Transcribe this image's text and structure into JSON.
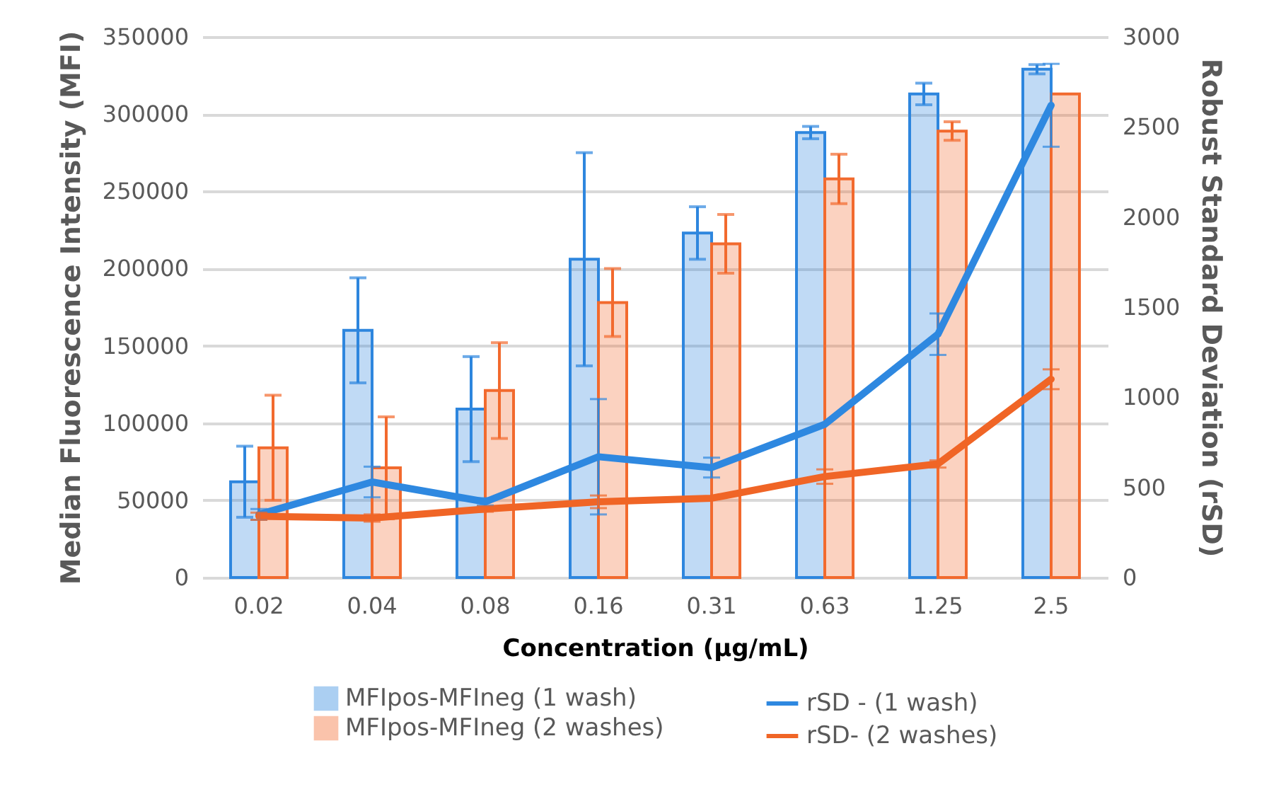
{
  "chart_data": {
    "type": "bar",
    "xlabel": "Concentration (µg/mL)",
    "ylabel": "Median Fluorescence Intensity (MFI)",
    "y2label": "Robust Standard Deviation (rSD)",
    "categories": [
      "0.02",
      "0.04",
      "0.08",
      "0.16",
      "0.31",
      "0.63",
      "1.25",
      "2.5"
    ],
    "series": [
      {
        "name": "MFIpos-MFIneg (1 wash)",
        "color": "#2e86de",
        "values": [
          62000,
          160000,
          109000,
          206000,
          223000,
          288000,
          313000,
          329000
        ],
        "errors": [
          23000,
          34000,
          34000,
          69000,
          17000,
          4000,
          7000,
          3000
        ]
      },
      {
        "name": "MFIpos-MFIneg (2 washes)",
        "color": "#f26a2e",
        "values": [
          84000,
          71000,
          121000,
          178000,
          216000,
          258000,
          289000,
          313000
        ],
        "errors": [
          34000,
          33000,
          31000,
          22000,
          19000,
          16000,
          6000,
          null
        ]
      },
      {
        "name": "rSD - (1 wash)",
        "type": "line",
        "axis": "y2",
        "color": "#2e88e0",
        "values": [
          350,
          530,
          420,
          670,
          610,
          850,
          1350,
          2620
        ],
        "errors": [
          30,
          85,
          20,
          320,
          55,
          null,
          115,
          230
        ]
      },
      {
        "name": "rSD- (2 washes)",
        "type": "line",
        "axis": "y2",
        "color": "#f06526",
        "values": [
          340,
          330,
          380,
          420,
          440,
          560,
          630,
          1100
        ],
        "errors": [
          20,
          20,
          15,
          35,
          null,
          40,
          20,
          55
        ]
      }
    ],
    "ylim": [
      0,
      350000
    ],
    "yticks": [
      0,
      50000,
      100000,
      150000,
      200000,
      250000,
      300000,
      350000
    ],
    "y2lim": [
      0,
      3000
    ],
    "y2ticks": [
      0,
      500,
      1000,
      1500,
      2000,
      2500,
      3000
    ],
    "grid": "y",
    "legend": "bottom"
  }
}
